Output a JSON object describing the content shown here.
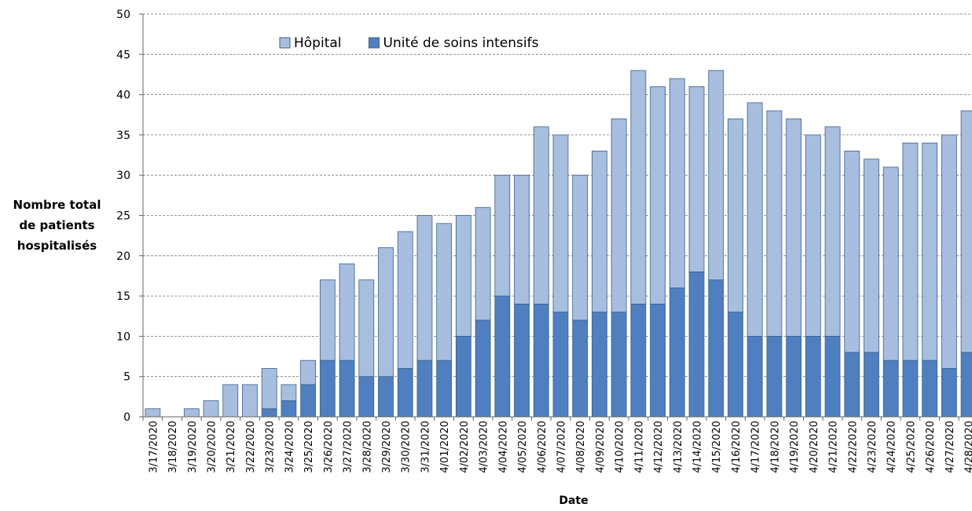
{
  "chart_data": {
    "type": "stacked_bar",
    "xlabel": "Date",
    "ylabel": "Nombre total de patients hospitalisés",
    "categories": [
      "3/17/2020",
      "3/18/2020",
      "3/19/2020",
      "3/20/2020",
      "3/21/2020",
      "3/22/2020",
      "3/23/2020",
      "3/24/2020",
      "3/25/2020",
      "3/26/2020",
      "3/27/2020",
      "3/28/2020",
      "3/29/2020",
      "3/30/2020",
      "3/31/2020",
      "4/01/2020",
      "4/02/2020",
      "4/03/2020",
      "4/04/2020",
      "4/05/2020",
      "4/06/2020",
      "4/07/2020",
      "4/08/2020",
      "4/09/2020",
      "4/10/2020",
      "4/11/2020",
      "4/12/2020",
      "4/13/2020",
      "4/14/2020",
      "4/15/2020",
      "4/16/2020",
      "4/17/2020",
      "4/18/2020",
      "4/19/2020",
      "4/20/2020",
      "4/21/2020",
      "4/22/2020",
      "4/23/2020",
      "4/24/2020",
      "4/25/2020",
      "4/26/2020",
      "4/27/2020",
      "4/28/2020"
    ],
    "series": [
      {
        "name": "Hôpital",
        "color": "#a7bedf",
        "values": [
          1,
          0,
          1,
          2,
          4,
          4,
          5,
          2,
          3,
          10,
          12,
          12,
          16,
          17,
          18,
          17,
          15,
          14,
          15,
          16,
          22,
          22,
          18,
          20,
          24,
          29,
          27,
          26,
          23,
          26,
          24,
          29,
          28,
          27,
          25,
          26,
          25,
          24,
          24,
          27,
          27,
          29,
          30
        ]
      },
      {
        "name": "Unité de soins intensifs",
        "color": "#4f7fbe",
        "values": [
          0,
          0,
          0,
          0,
          0,
          0,
          1,
          2,
          4,
          7,
          7,
          5,
          5,
          6,
          7,
          7,
          10,
          12,
          15,
          14,
          14,
          13,
          12,
          13,
          13,
          14,
          14,
          16,
          18,
          17,
          13,
          10,
          10,
          10,
          10,
          10,
          8,
          8,
          7,
          7,
          7,
          6,
          8
        ]
      }
    ],
    "ylim": [
      0,
      50
    ],
    "yticks": [
      0,
      5,
      10,
      15,
      20,
      25,
      30,
      35,
      40,
      45,
      50
    ],
    "grid": true
  }
}
